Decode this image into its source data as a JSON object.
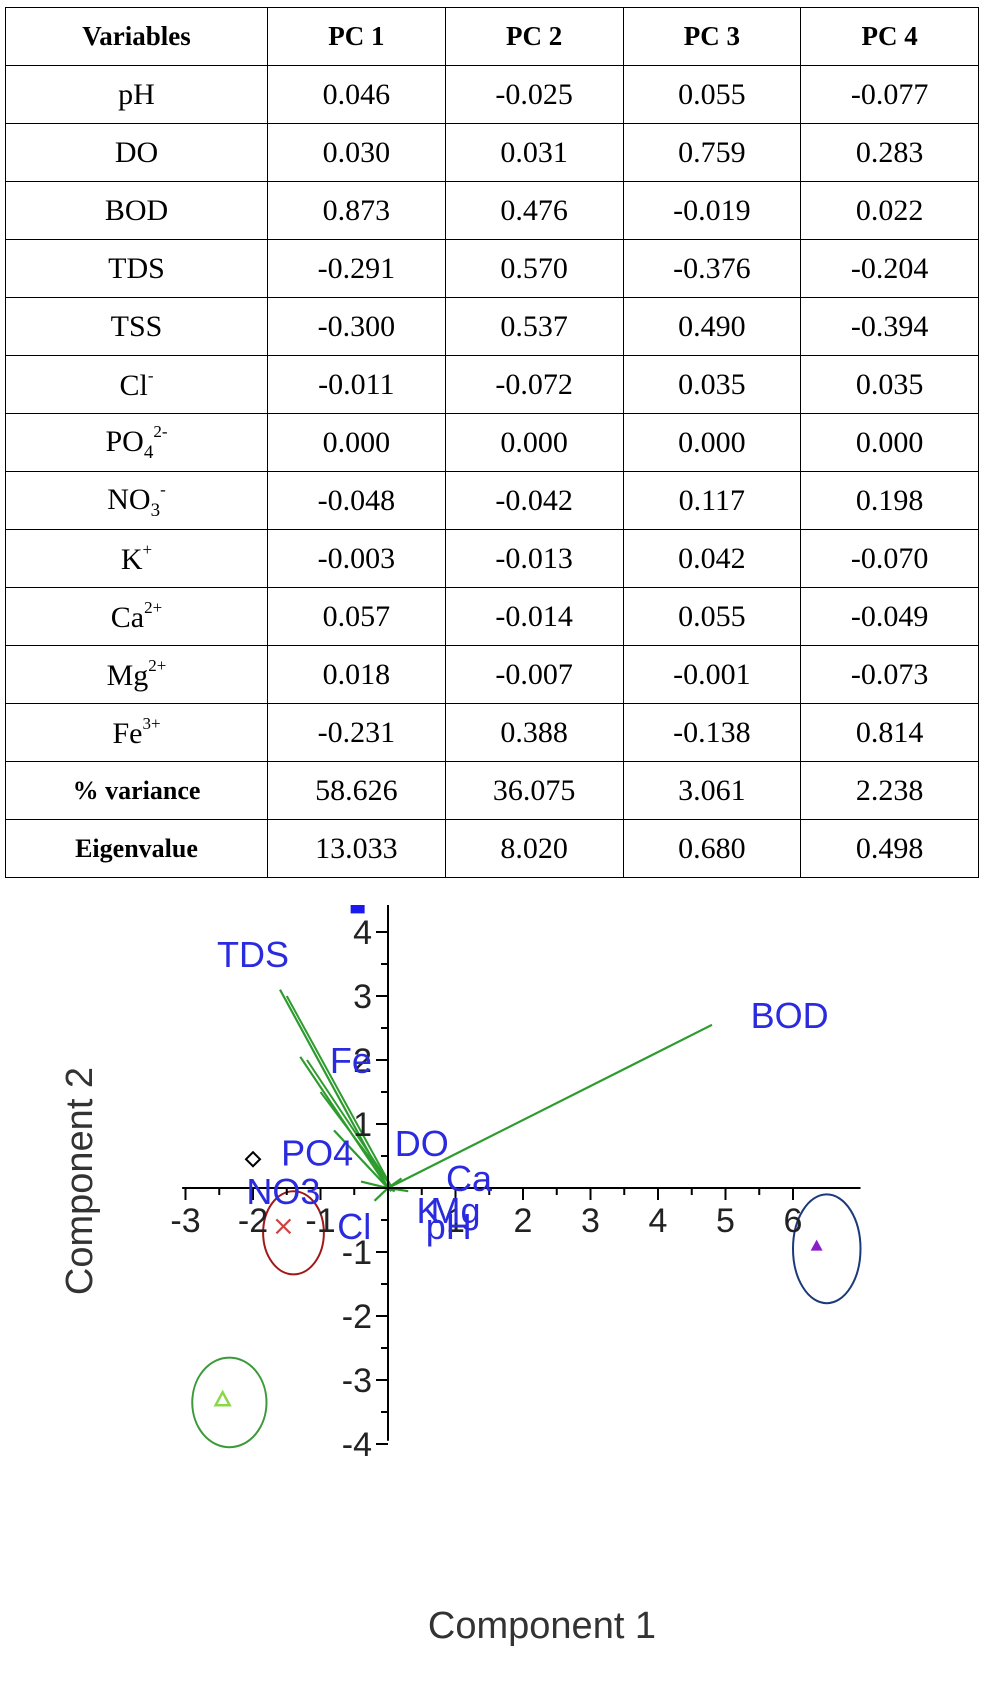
{
  "table": {
    "headers": [
      "Variables",
      "PC 1",
      "PC 2",
      "PC 3",
      "PC 4"
    ],
    "rows": [
      {
        "base": "pH",
        "sub": "",
        "sup": "",
        "values": [
          "0.046",
          "-0.025",
          "0.055",
          "-0.077"
        ]
      },
      {
        "base": "DO",
        "sub": "",
        "sup": "",
        "values": [
          "0.030",
          "0.031",
          "0.759",
          "0.283"
        ]
      },
      {
        "base": "BOD",
        "sub": "",
        "sup": "",
        "values": [
          "0.873",
          "0.476",
          "-0.019",
          "0.022"
        ]
      },
      {
        "base": "TDS",
        "sub": "",
        "sup": "",
        "values": [
          "-0.291",
          "0.570",
          "-0.376",
          "-0.204"
        ]
      },
      {
        "base": "TSS",
        "sub": "",
        "sup": "",
        "values": [
          "-0.300",
          "0.537",
          "0.490",
          "-0.394"
        ]
      },
      {
        "base": "Cl",
        "sub": "",
        "sup": "-",
        "values": [
          "-0.011",
          "-0.072",
          "0.035",
          "0.035"
        ]
      },
      {
        "base": "PO",
        "sub": "4",
        "sup": "2-",
        "values": [
          "0.000",
          "0.000",
          "0.000",
          "0.000"
        ]
      },
      {
        "base": "NO",
        "sub": "3",
        "sup": "-",
        "values": [
          "-0.048",
          "-0.042",
          "0.117",
          "0.198"
        ]
      },
      {
        "base": "K",
        "sub": "",
        "sup": "+",
        "values": [
          "-0.003",
          "-0.013",
          "0.042",
          "-0.070"
        ]
      },
      {
        "base": "Ca",
        "sub": "",
        "sup": "2+",
        "values": [
          "0.057",
          "-0.014",
          "0.055",
          "-0.049"
        ]
      },
      {
        "base": "Mg",
        "sub": "",
        "sup": "2+",
        "values": [
          "0.018",
          "-0.007",
          "-0.001",
          "-0.073"
        ]
      },
      {
        "base": "Fe",
        "sub": "",
        "sup": "3+",
        "values": [
          "-0.231",
          "0.388",
          "-0.138",
          "0.814"
        ]
      }
    ],
    "summary_rows": [
      {
        "label": "% variance",
        "values": [
          "58.626",
          "36.075",
          "3.061",
          "2.238"
        ]
      },
      {
        "label": "Eigenvalue",
        "values": [
          "13.033",
          "8.020",
          "0.680",
          "0.498"
        ]
      }
    ]
  },
  "chart_data": {
    "type": "scatter",
    "xlabel": "Component 1",
    "ylabel": "Component 2",
    "xlim": [
      -3,
      7
    ],
    "ylim": [
      -4,
      4.5
    ],
    "x_ticks": [
      "-3",
      "-2",
      "-1",
      "1",
      "2",
      "3",
      "4",
      "5",
      "6"
    ],
    "y_ticks": [
      "4",
      "3",
      "2",
      "1",
      "-1",
      "-2",
      "-3",
      "-4"
    ],
    "grid": false,
    "colors": {
      "axis": "#000000",
      "loading_line": "#2e9b2e",
      "label": "#2a2adf",
      "square": "#1a1aee",
      "diamond": "#000000",
      "cross": "#d04040",
      "cross_circle": "#a01818",
      "triangle_purple": "#8a1fc8",
      "triangle_green": "#8ad84a",
      "circle_blue": "#1a3a7a",
      "circle_green": "#3a9a3a"
    },
    "loadings": [
      {
        "label": "TDS",
        "x": -1.6,
        "y": 3.1
      },
      {
        "label": "BOD",
        "x": 4.8,
        "y": 2.55
      },
      {
        "label": "Fe",
        "x": -1.3,
        "y": 2.05
      },
      {
        "label": "PO4",
        "x": -0.8,
        "y": 0.9
      },
      {
        "label": "DO",
        "x": 0.2,
        "y": 0.15
      },
      {
        "label": "Ca",
        "x": 0.3,
        "y": -0.05
      },
      {
        "label": "NO3",
        "x": -0.4,
        "y": 0.1
      },
      {
        "label": "Cl",
        "x": -0.2,
        "y": -0.2
      },
      {
        "label": "K",
        "x": 0.05,
        "y": -0.05
      },
      {
        "label": "Mg",
        "x": 0.1,
        "y": -0.05
      },
      {
        "label": "pH",
        "x": 0.05,
        "y": 0.02
      }
    ],
    "label_positions": [
      {
        "label": "TDS",
        "x": -2.0,
        "y": 3.45
      },
      {
        "label": "BOD",
        "x": 5.95,
        "y": 2.5
      },
      {
        "label": "Fe",
        "x": -0.55,
        "y": 1.8
      },
      {
        "label": "PO4",
        "x": -1.05,
        "y": 0.35
      },
      {
        "label": "DO",
        "x": 0.5,
        "y": 0.5
      },
      {
        "label": "Ca",
        "x": 1.2,
        "y": -0.05
      },
      {
        "label": "NO3",
        "x": -1.55,
        "y": -0.25
      },
      {
        "label": "Cl",
        "x": -0.5,
        "y": -0.8
      },
      {
        "label": "K",
        "x": 0.6,
        "y": -0.55
      },
      {
        "label": "Mg",
        "x": 1.0,
        "y": -0.55
      },
      {
        "label": "pH",
        "x": 0.9,
        "y": -0.8
      }
    ],
    "points": [
      {
        "marker": "square",
        "x": -0.45,
        "y": 4.4
      },
      {
        "marker": "diamond",
        "x": -2.0,
        "y": 0.45
      },
      {
        "marker": "cross",
        "x": -1.55,
        "y": -0.6
      },
      {
        "marker": "triangle_purple",
        "x": 6.35,
        "y": -0.9
      },
      {
        "marker": "triangle_green",
        "x": -2.45,
        "y": -3.3
      }
    ],
    "cluster_ellipses": [
      {
        "color_key": "cross_circle",
        "cx": -1.4,
        "cy": -0.7,
        "rx": 0.45,
        "ry": 0.65
      },
      {
        "color_key": "circle_blue",
        "cx": 6.5,
        "cy": -0.95,
        "rx": 0.5,
        "ry": 0.85
      },
      {
        "color_key": "circle_green",
        "cx": -2.35,
        "cy": -3.35,
        "rx": 0.55,
        "ry": 0.7
      }
    ]
  }
}
